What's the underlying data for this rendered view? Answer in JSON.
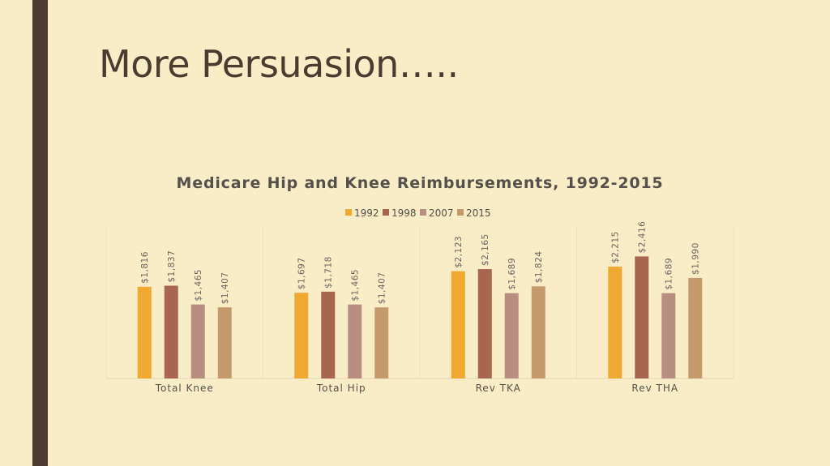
{
  "slide": {
    "title": "More Persuasion….."
  },
  "chart_data": {
    "type": "bar",
    "title": "Medicare Hip and Knee Reimbursements, 1992-2015",
    "categories": [
      "Total Knee",
      "Total Hip",
      "Rev TKA",
      "Rev THA"
    ],
    "series": [
      {
        "name": "1992",
        "values": [
          1816,
          1697,
          2123,
          2215
        ],
        "labels": [
          "$1,816",
          "$1,697",
          "$2,123",
          "$2,215"
        ],
        "color": "#f0a830"
      },
      {
        "name": "1998",
        "values": [
          1837,
          1718,
          2165,
          2416
        ],
        "labels": [
          "$1,837",
          "$1,718",
          "$2,165",
          "$2,416"
        ],
        "color": "#a86650"
      },
      {
        "name": "2007",
        "values": [
          1465,
          1465,
          1689,
          1689
        ],
        "labels": [
          "$1,465",
          "$1,465",
          "$1,689",
          "$1,689"
        ],
        "color": "#b78e80"
      },
      {
        "name": "2015",
        "values": [
          1407,
          1407,
          1824,
          1990
        ],
        "labels": [
          "$1,407",
          "$1,407",
          "$1,824",
          "$1,990"
        ],
        "color": "#c49a6c"
      }
    ],
    "ylim": [
      0,
      3000
    ],
    "legend": "top-center",
    "grid": "vertical category separators only"
  }
}
